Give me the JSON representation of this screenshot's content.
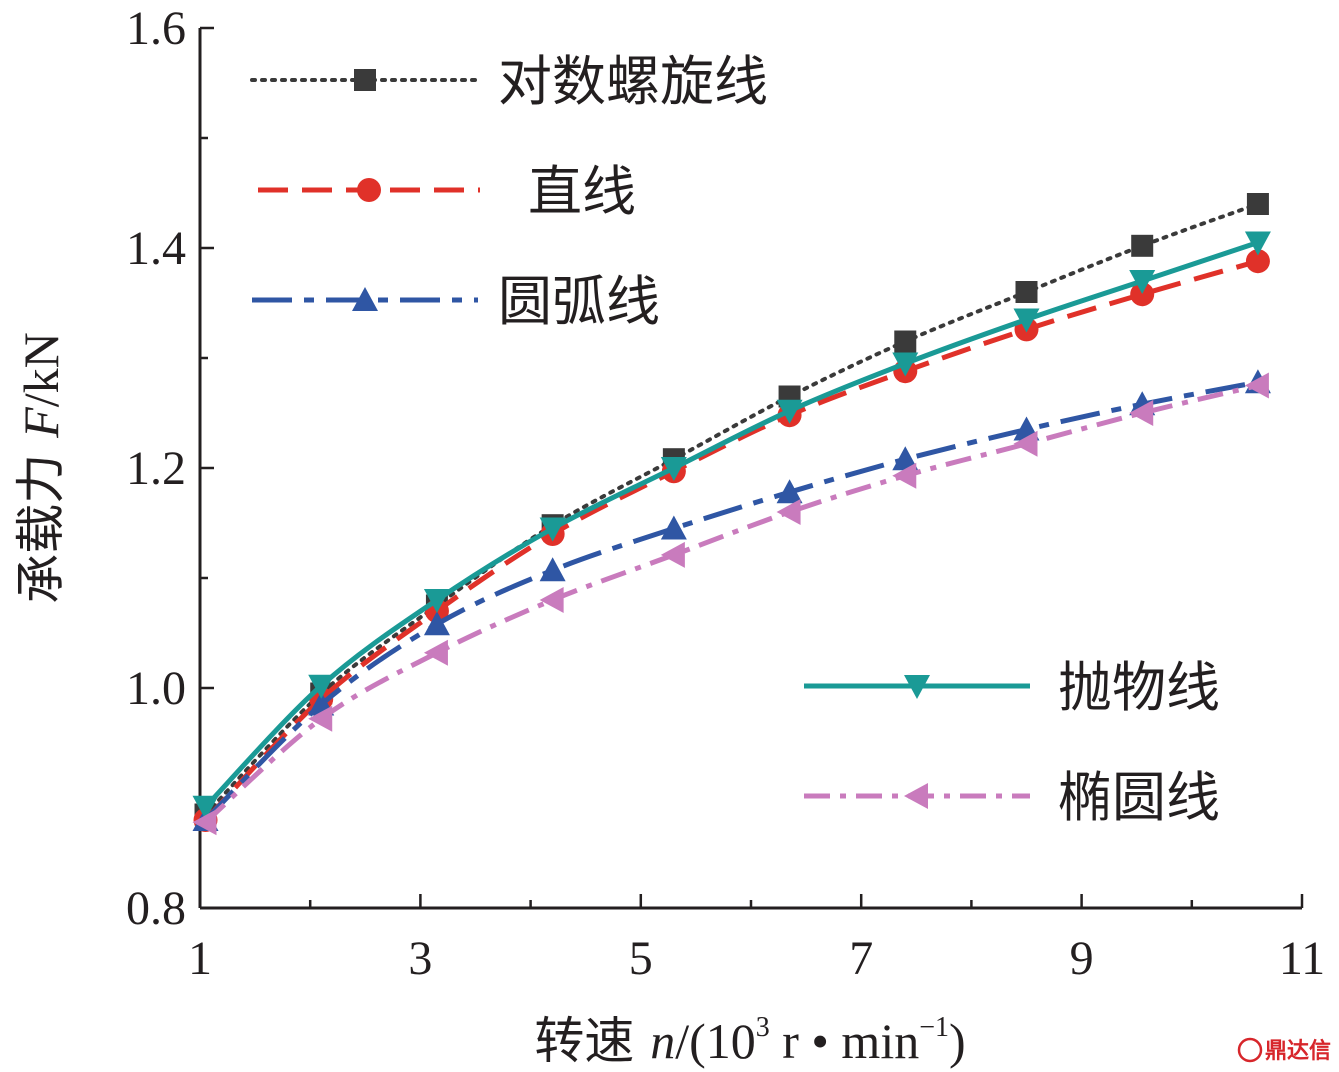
{
  "chart_data": {
    "type": "line",
    "title": "",
    "xlabel": "转速 n/(10³ r • min⁻¹)",
    "xlabel_parts": {
      "prefix": "转速 ",
      "var": "n",
      "unit_open": "/(10",
      "sup": "3",
      "unit_mid": " r • min",
      "sup2": "−1",
      "unit_close": ")"
    },
    "ylabel": "承载力 F/kN",
    "ylabel_parts": {
      "prefix": "承载力 ",
      "var": "F",
      "unit": "/kN"
    },
    "xlim": [
      1,
      11
    ],
    "ylim": [
      0.8,
      1.6
    ],
    "xticks": [
      1,
      3,
      5,
      7,
      9,
      11
    ],
    "xtick_labels": [
      "1",
      "3",
      "5",
      "7",
      "9",
      "11"
    ],
    "yticks": [
      0.8,
      1.0,
      1.2,
      1.4,
      1.6
    ],
    "ytick_labels": [
      "0.8",
      "1.0",
      "1.2",
      "1.4",
      "1.6"
    ],
    "x": [
      1.05,
      2.1,
      3.15,
      4.2,
      5.3,
      6.35,
      7.4,
      8.5,
      9.55,
      10.6
    ],
    "series": [
      {
        "name": "对数螺旋线",
        "color": "#3a3a3a",
        "marker": "square",
        "dash": "dotted",
        "values": [
          0.885,
          0.995,
          1.075,
          1.148,
          1.208,
          1.265,
          1.315,
          1.36,
          1.402,
          1.44
        ]
      },
      {
        "name": "直线",
        "color": "#e03129",
        "marker": "circle",
        "dash": "dashed",
        "values": [
          0.88,
          0.99,
          1.07,
          1.14,
          1.197,
          1.248,
          1.288,
          1.326,
          1.358,
          1.388
        ]
      },
      {
        "name": "圆弧线",
        "color": "#2f56a4",
        "marker": "triangle-up",
        "dash": "dashdot",
        "values": [
          0.88,
          0.985,
          1.058,
          1.107,
          1.145,
          1.178,
          1.208,
          1.235,
          1.258,
          1.278
        ]
      },
      {
        "name": "抛物线",
        "color": "#1a9a96",
        "marker": "triangle-down",
        "dash": "solid",
        "values": [
          0.892,
          1.002,
          1.08,
          1.145,
          1.2,
          1.252,
          1.295,
          1.335,
          1.37,
          1.405
        ]
      },
      {
        "name": "椭圆线",
        "color": "#c97bbd",
        "marker": "triangle-left",
        "dash": "dashdotdot",
        "values": [
          0.878,
          0.972,
          1.032,
          1.08,
          1.121,
          1.16,
          1.193,
          1.222,
          1.25,
          1.275
        ]
      }
    ],
    "legend": {
      "placement": "top-left and bottom-right"
    },
    "grid": false
  },
  "watermark": {
    "text": "鼎达信",
    "color": "#d7262b"
  }
}
